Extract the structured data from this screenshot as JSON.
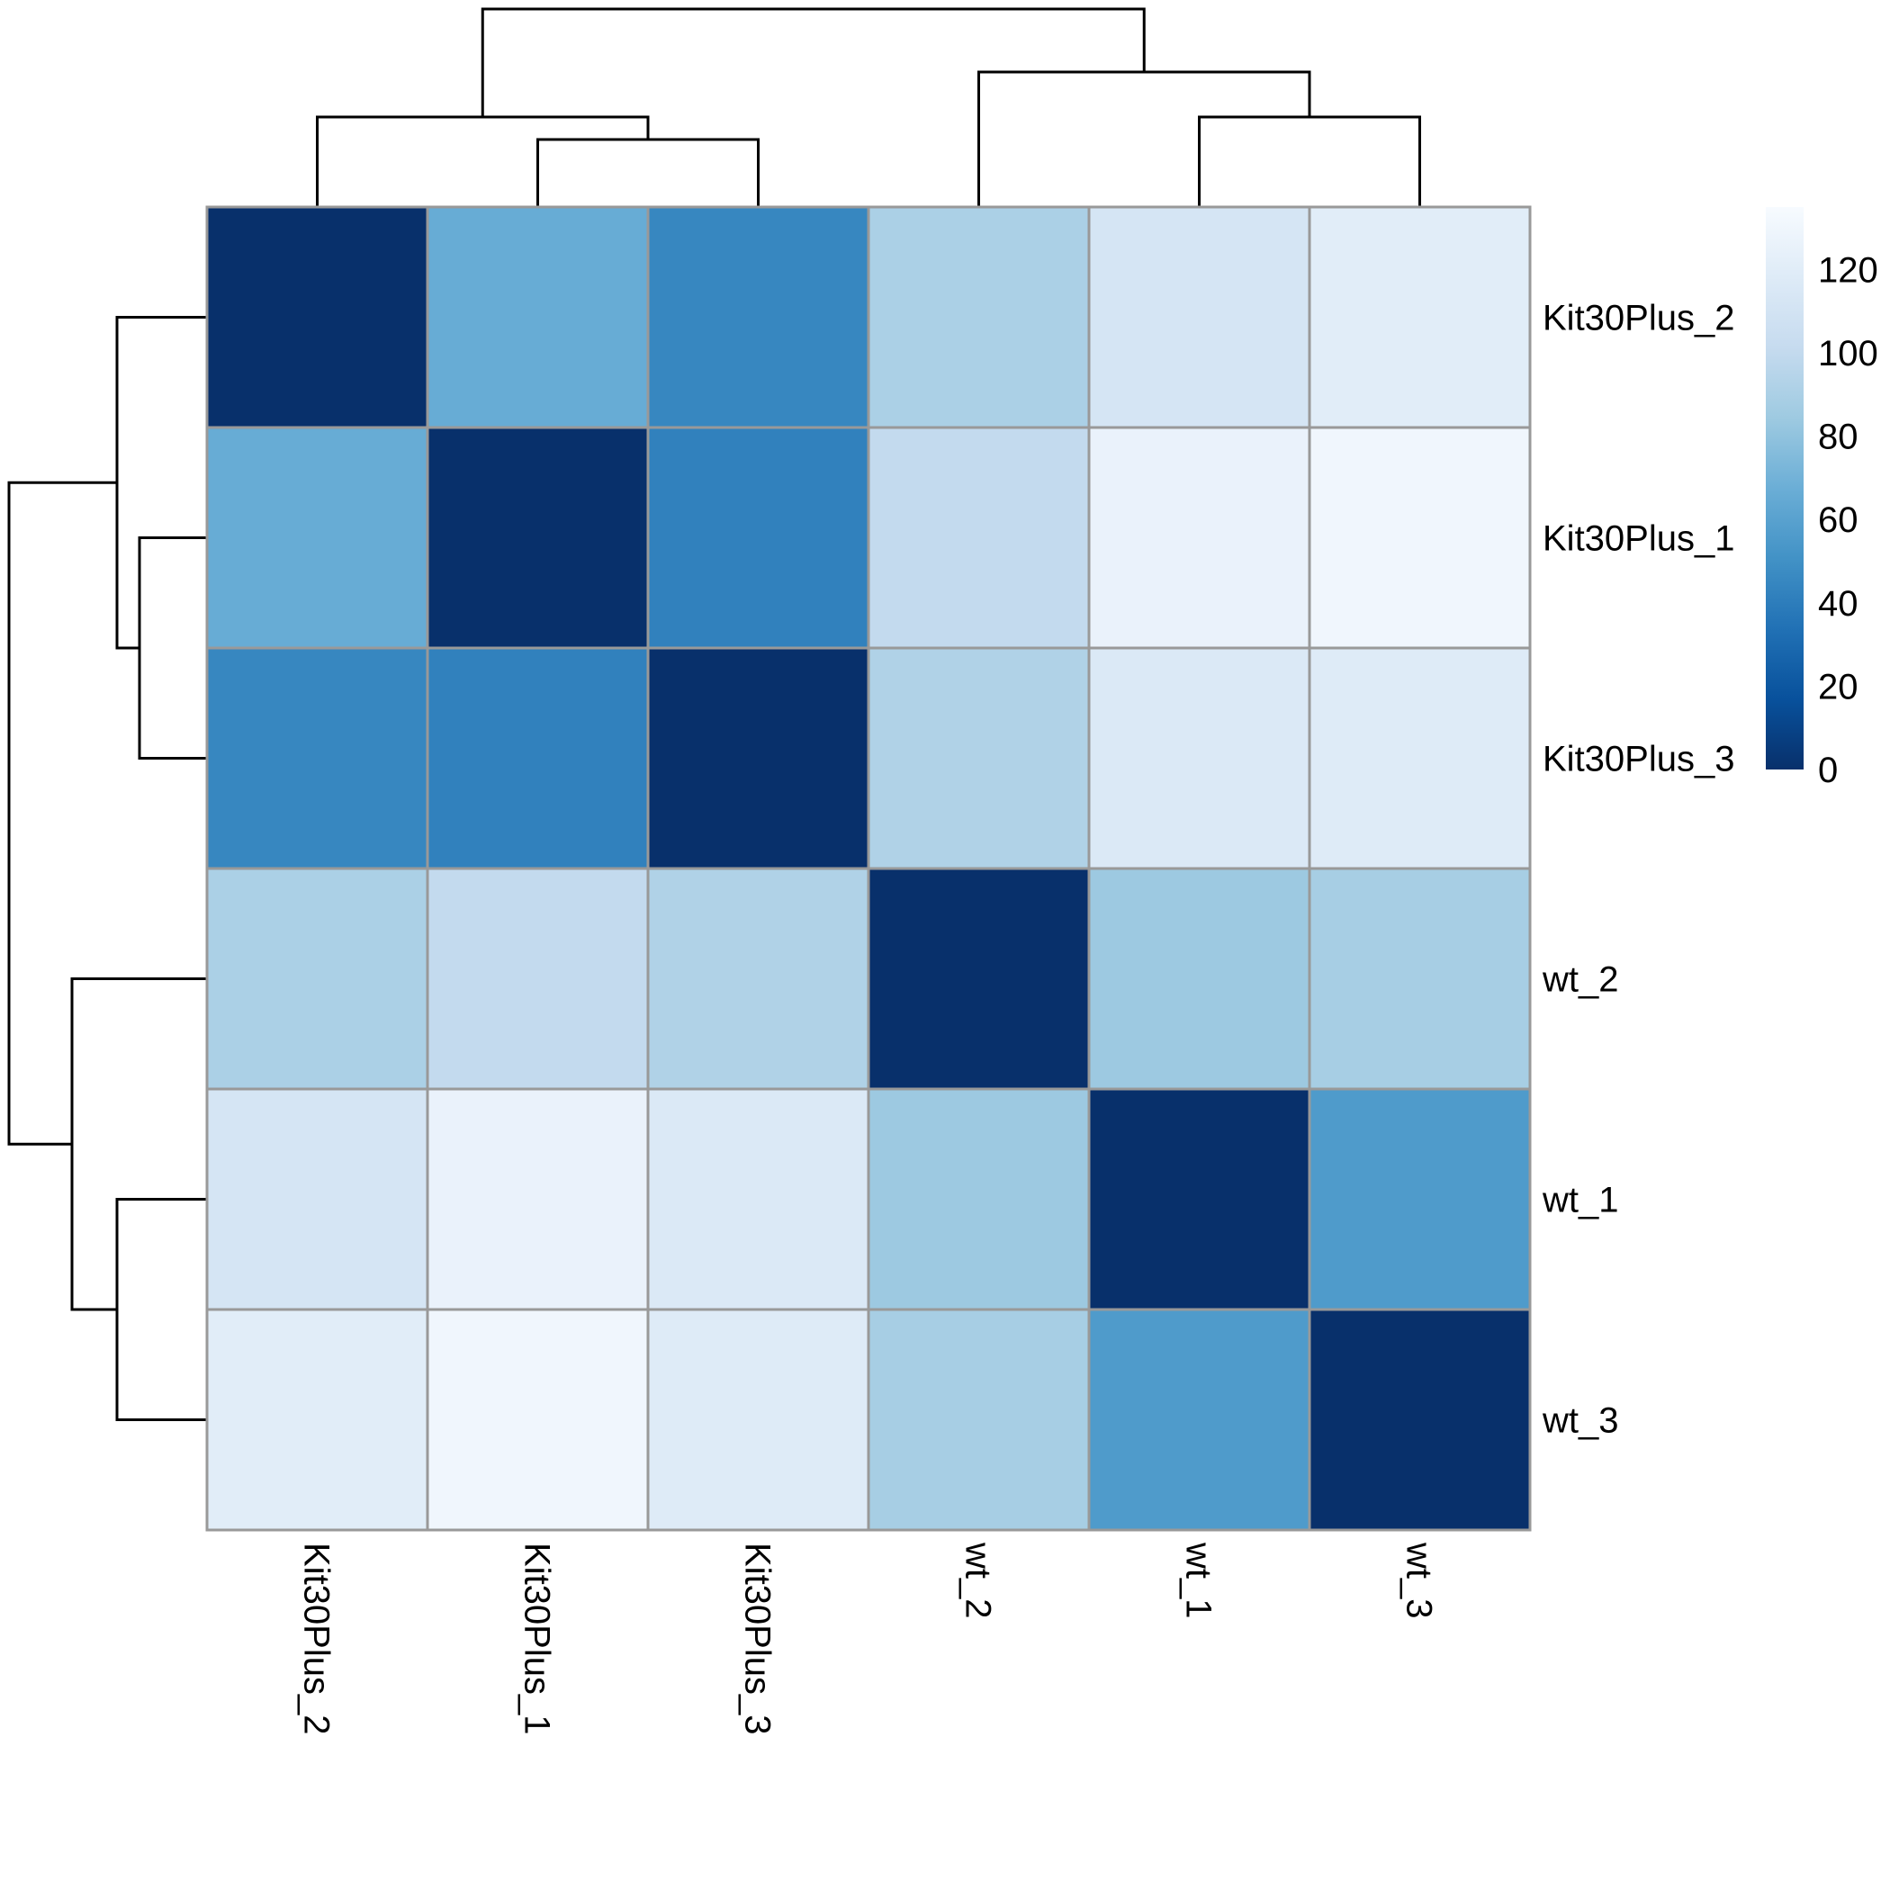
{
  "chart_data": {
    "type": "heatmap",
    "title": "",
    "columns": [
      "Kit30Plus_2",
      "Kit30Plus_1",
      "Kit30Plus_3",
      "wt_2",
      "wt_1",
      "wt_3"
    ],
    "rows": [
      "Kit30Plus_2",
      "Kit30Plus_1",
      "Kit30Plus_3",
      "wt_2",
      "wt_1",
      "wt_3"
    ],
    "values": [
      [
        0,
        66,
        45,
        90,
        112,
        120
      ],
      [
        66,
        0,
        42,
        100,
        126,
        130
      ],
      [
        45,
        42,
        0,
        92,
        116,
        118
      ],
      [
        90,
        100,
        92,
        0,
        84,
        88
      ],
      [
        112,
        126,
        116,
        84,
        0,
        56
      ],
      [
        120,
        130,
        118,
        88,
        56,
        0
      ]
    ],
    "colorbar": {
      "min": 0,
      "max": 135,
      "ticks": [
        0,
        20,
        40,
        60,
        80,
        100,
        120
      ],
      "tick_labels": [
        "0",
        "20",
        "40",
        "60",
        "80",
        "100",
        "120"
      ],
      "colors": [
        "#08306b",
        "#08519c",
        "#2171b5",
        "#4292c6",
        "#6baed6",
        "#9ecae1",
        "#c6dbef",
        "#deebf7",
        "#f7fbff"
      ]
    },
    "dendrogram": {
      "column_merges": [
        {
          "left": "Kit30Plus_1",
          "right": "Kit30Plus_3"
        },
        {
          "left": "Kit30Plus_2",
          "right": "Kit30Plus_1+Kit30Plus_3"
        },
        {
          "left": "wt_1",
          "right": "wt_3"
        },
        {
          "left": "wt_2",
          "right": "wt_1+wt_3"
        },
        {
          "left": "Kit30Plus group",
          "right": "wt group"
        }
      ],
      "row_merges": [
        {
          "left": "Kit30Plus_1",
          "right": "Kit30Plus_3"
        },
        {
          "left": "Kit30Plus_2",
          "right": "Kit30Plus_1+Kit30Plus_3"
        },
        {
          "left": "wt_1",
          "right": "wt_3"
        },
        {
          "left": "wt_2",
          "right": "wt_1+wt_3"
        },
        {
          "left": "Kit30Plus group",
          "right": "wt group"
        }
      ]
    },
    "grid": true,
    "legend": "right"
  }
}
